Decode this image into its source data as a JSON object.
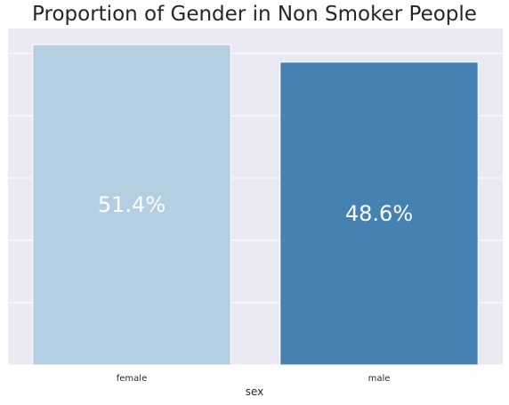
{
  "chart_data": {
    "type": "bar",
    "title": "Proportion of Gender in Non Smoker People",
    "xlabel": "sex",
    "ylabel": "",
    "categories": [
      "female",
      "male"
    ],
    "values": [
      51.4,
      48.6
    ],
    "value_labels": [
      "51.4%",
      "48.6%"
    ],
    "colors": [
      "#b3cfe1",
      "#4682b1"
    ],
    "background": "#e9eaf2",
    "grid": true,
    "ylim": [
      0,
      54
    ]
  }
}
